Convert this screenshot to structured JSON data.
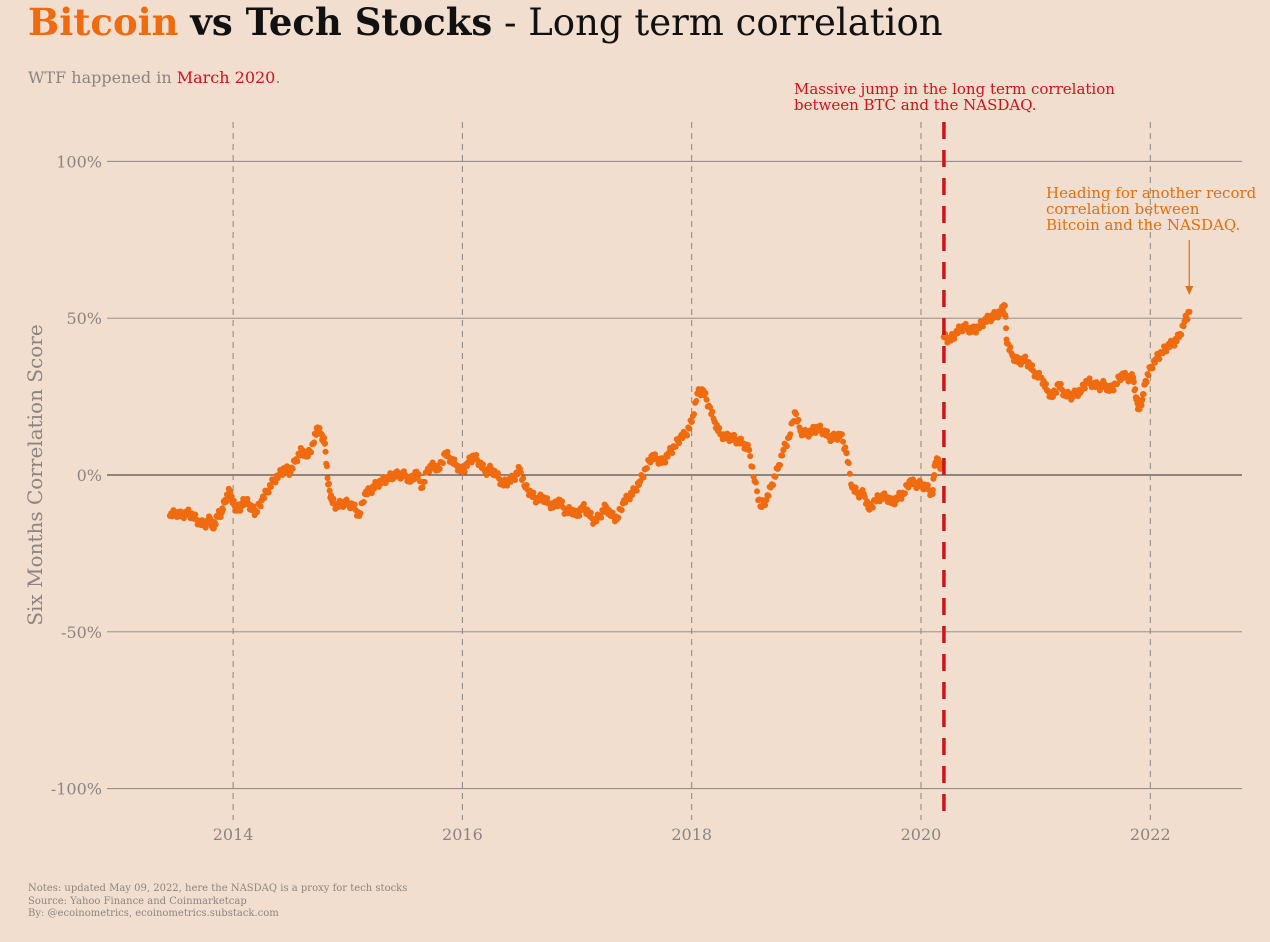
{
  "title": {
    "bitcoin": "Bitcoin",
    "vs": "vs Tech Stocks",
    "rest": " - Long term correlation"
  },
  "subtitle": {
    "prefix": "WTF happened in ",
    "highlight": "March 2020",
    "suffix": "."
  },
  "notes": {
    "line1": "Notes: updated May 09, 2022, here the NASDAQ is a proxy for tech stocks",
    "line2": "Source: Yahoo Finance and Coinmarketcap",
    "line3": "By: @ecoinometrics, ecoinometrics.substack.com"
  },
  "annotations": {
    "march2020_line1": "Massive jump in the long term correlation",
    "march2020_line2": "between BTC and the NASDAQ.",
    "record_line1": "Heading for another record",
    "record_line2": "correlation between",
    "record_line3": "Bitcoin and the NASDAQ."
  },
  "colors": {
    "background": "#f2dece",
    "series": "#f06a0f",
    "highlight": "#d0121a",
    "annotation_orange": "#e06f14",
    "grid": "#8a8582"
  },
  "chart_data": {
    "type": "scatter",
    "ylabel": "Six Months Correlation Score",
    "xlabel": "",
    "y_ticks": [
      100,
      50,
      0,
      -50,
      -100
    ],
    "y_tick_labels": [
      "100%",
      "50%",
      "0%",
      "-50%",
      "-100%"
    ],
    "x_ticks": [
      2014,
      2016,
      2018,
      2020,
      2022
    ],
    "xlim": [
      2012.9,
      2022.8
    ],
    "ylim": [
      -110,
      110
    ],
    "highlight_x": 2020.2,
    "annotation_arrow_x": 2022.34,
    "series": [
      {
        "points": [
          [
            2013.45,
            -13
          ],
          [
            2013.5,
            -12
          ],
          [
            2013.55,
            -13
          ],
          [
            2013.6,
            -12
          ],
          [
            2013.65,
            -13
          ],
          [
            2013.7,
            -15
          ],
          [
            2013.75,
            -16
          ],
          [
            2013.8,
            -14
          ],
          [
            2013.83,
            -17
          ],
          [
            2013.86,
            -13
          ],
          [
            2013.9,
            -12
          ],
          [
            2013.93,
            -8
          ],
          [
            2013.97,
            -5
          ],
          [
            2014.0,
            -9
          ],
          [
            2014.03,
            -11
          ],
          [
            2014.07,
            -10
          ],
          [
            2014.1,
            -8
          ],
          [
            2014.13,
            -9
          ],
          [
            2014.17,
            -11
          ],
          [
            2014.2,
            -12
          ],
          [
            2014.25,
            -8
          ],
          [
            2014.3,
            -5
          ],
          [
            2014.35,
            -2
          ],
          [
            2014.4,
            0
          ],
          [
            2014.45,
            2
          ],
          [
            2014.5,
            1
          ],
          [
            2014.55,
            5
          ],
          [
            2014.6,
            8
          ],
          [
            2014.65,
            6
          ],
          [
            2014.7,
            10
          ],
          [
            2014.73,
            15
          ],
          [
            2014.77,
            13
          ],
          [
            2014.8,
            10
          ],
          [
            2014.83,
            -3
          ],
          [
            2014.86,
            -8
          ],
          [
            2014.9,
            -10
          ],
          [
            2014.95,
            -9
          ],
          [
            2015.0,
            -9
          ],
          [
            2015.05,
            -10
          ],
          [
            2015.1,
            -13
          ],
          [
            2015.15,
            -6
          ],
          [
            2015.2,
            -5
          ],
          [
            2015.25,
            -3
          ],
          [
            2015.3,
            -2
          ],
          [
            2015.35,
            -1
          ],
          [
            2015.4,
            0
          ],
          [
            2015.45,
            0
          ],
          [
            2015.5,
            0
          ],
          [
            2015.55,
            -2
          ],
          [
            2015.6,
            1
          ],
          [
            2015.65,
            -4
          ],
          [
            2015.7,
            2
          ],
          [
            2015.75,
            3
          ],
          [
            2015.8,
            2
          ],
          [
            2015.85,
            7
          ],
          [
            2015.9,
            5
          ],
          [
            2015.95,
            3
          ],
          [
            2016.0,
            1
          ],
          [
            2016.05,
            4
          ],
          [
            2016.1,
            6
          ],
          [
            2016.15,
            4
          ],
          [
            2016.2,
            1
          ],
          [
            2016.25,
            2
          ],
          [
            2016.3,
            0
          ],
          [
            2016.35,
            -3
          ],
          [
            2016.4,
            -2
          ],
          [
            2016.45,
            -1
          ],
          [
            2016.5,
            2
          ],
          [
            2016.55,
            -4
          ],
          [
            2016.6,
            -6
          ],
          [
            2016.65,
            -8
          ],
          [
            2016.7,
            -7
          ],
          [
            2016.75,
            -9
          ],
          [
            2016.8,
            -10
          ],
          [
            2016.85,
            -8
          ],
          [
            2016.9,
            -12
          ],
          [
            2016.95,
            -11
          ],
          [
            2017.0,
            -13
          ],
          [
            2017.05,
            -10
          ],
          [
            2017.1,
            -12
          ],
          [
            2017.15,
            -15
          ],
          [
            2017.2,
            -13
          ],
          [
            2017.25,
            -10
          ],
          [
            2017.3,
            -13
          ],
          [
            2017.35,
            -14
          ],
          [
            2017.4,
            -9
          ],
          [
            2017.45,
            -7
          ],
          [
            2017.5,
            -5
          ],
          [
            2017.55,
            -2
          ],
          [
            2017.6,
            2
          ],
          [
            2017.65,
            6
          ],
          [
            2017.7,
            5
          ],
          [
            2017.75,
            4
          ],
          [
            2017.8,
            7
          ],
          [
            2017.85,
            9
          ],
          [
            2017.9,
            12
          ],
          [
            2017.95,
            13
          ],
          [
            2018.0,
            17
          ],
          [
            2018.05,
            26
          ],
          [
            2018.1,
            27
          ],
          [
            2018.15,
            22
          ],
          [
            2018.2,
            17
          ],
          [
            2018.25,
            13
          ],
          [
            2018.3,
            12
          ],
          [
            2018.35,
            12
          ],
          [
            2018.4,
            11
          ],
          [
            2018.45,
            10
          ],
          [
            2018.5,
            8
          ],
          [
            2018.55,
            -2
          ],
          [
            2018.6,
            -10
          ],
          [
            2018.65,
            -8
          ],
          [
            2018.7,
            -3
          ],
          [
            2018.75,
            2
          ],
          [
            2018.8,
            8
          ],
          [
            2018.85,
            12
          ],
          [
            2018.9,
            20
          ],
          [
            2018.95,
            14
          ],
          [
            2019.0,
            13
          ],
          [
            2019.05,
            14
          ],
          [
            2019.1,
            15
          ],
          [
            2019.15,
            14
          ],
          [
            2019.2,
            12
          ],
          [
            2019.25,
            12
          ],
          [
            2019.3,
            13
          ],
          [
            2019.35,
            7
          ],
          [
            2019.4,
            -4
          ],
          [
            2019.45,
            -6
          ],
          [
            2019.5,
            -6
          ],
          [
            2019.55,
            -11
          ],
          [
            2019.6,
            -8
          ],
          [
            2019.65,
            -7
          ],
          [
            2019.7,
            -7
          ],
          [
            2019.75,
            -9
          ],
          [
            2019.8,
            -7
          ],
          [
            2019.85,
            -6
          ],
          [
            2019.9,
            -2
          ],
          [
            2019.95,
            -3
          ],
          [
            2020.0,
            -3
          ],
          [
            2020.05,
            -4
          ],
          [
            2020.1,
            -6
          ],
          [
            2020.12,
            3
          ],
          [
            2020.15,
            5
          ],
          [
            2020.17,
            2
          ],
          [
            2020.2,
            44
          ],
          [
            2020.25,
            43
          ],
          [
            2020.3,
            45
          ],
          [
            2020.35,
            47
          ],
          [
            2020.4,
            47
          ],
          [
            2020.45,
            46
          ],
          [
            2020.5,
            47
          ],
          [
            2020.55,
            49
          ],
          [
            2020.6,
            50
          ],
          [
            2020.65,
            51
          ],
          [
            2020.7,
            52
          ],
          [
            2020.73,
            54
          ],
          [
            2020.75,
            42
          ],
          [
            2020.8,
            38
          ],
          [
            2020.85,
            36
          ],
          [
            2020.9,
            37
          ],
          [
            2020.95,
            35
          ],
          [
            2021.0,
            32
          ],
          [
            2021.05,
            31
          ],
          [
            2021.1,
            27
          ],
          [
            2021.15,
            25
          ],
          [
            2021.2,
            29
          ],
          [
            2021.25,
            26
          ],
          [
            2021.3,
            25
          ],
          [
            2021.35,
            26
          ],
          [
            2021.4,
            27
          ],
          [
            2021.45,
            30
          ],
          [
            2021.5,
            29
          ],
          [
            2021.55,
            28
          ],
          [
            2021.6,
            29
          ],
          [
            2021.65,
            27
          ],
          [
            2021.7,
            29
          ],
          [
            2021.75,
            32
          ],
          [
            2021.8,
            31
          ],
          [
            2021.85,
            31
          ],
          [
            2021.88,
            24
          ],
          [
            2021.9,
            21
          ],
          [
            2021.93,
            24
          ],
          [
            2021.96,
            30
          ],
          [
            2022.0,
            34
          ],
          [
            2022.05,
            37
          ],
          [
            2022.1,
            39
          ],
          [
            2022.15,
            41
          ],
          [
            2022.2,
            42
          ],
          [
            2022.25,
            44
          ],
          [
            2022.3,
            49
          ],
          [
            2022.34,
            52
          ]
        ]
      }
    ]
  }
}
